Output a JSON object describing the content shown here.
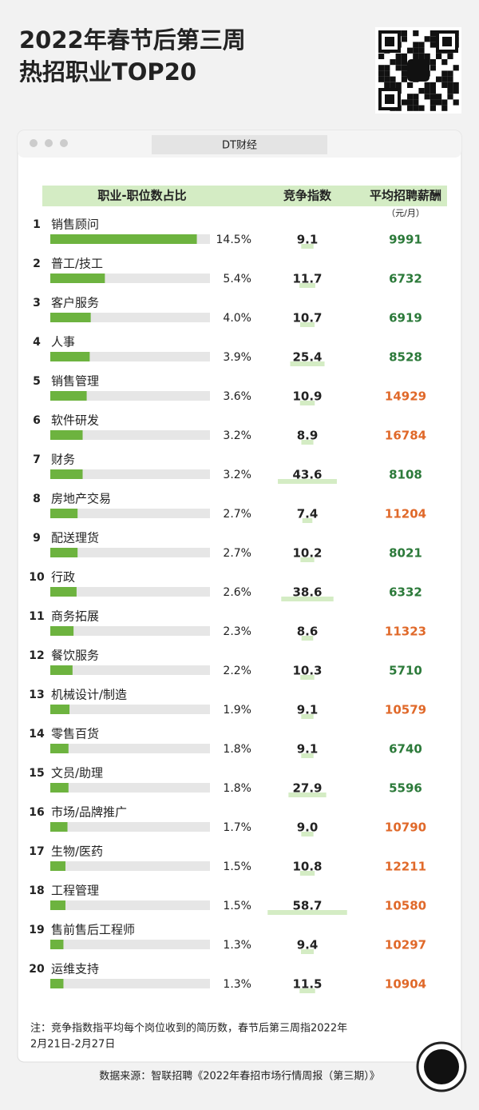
{
  "title_lines": [
    "2022年春节后第三周",
    "热招职业TOP20"
  ],
  "window_title": "DT财经",
  "headers": [
    "职业-职位数占比",
    "竞争指数",
    "平均招聘薪酬"
  ],
  "salary_unit": "（元/月）",
  "chart_data": {
    "type": "bar",
    "ranks": [
      1,
      2,
      3,
      4,
      5,
      6,
      7,
      8,
      9,
      10,
      11,
      12,
      13,
      14,
      15,
      16,
      17,
      18,
      19,
      20
    ],
    "categories": [
      "销售顾问",
      "普工/技工",
      "客户服务",
      "人事",
      "销售管理",
      "软件研发",
      "财务",
      "房地产交易",
      "配送理货",
      "行政",
      "商务拓展",
      "餐饮服务",
      "机械设计/制造",
      "零售百货",
      "文员/助理",
      "市场/品牌推广",
      "生物/医药",
      "工程管理",
      "售前售后工程师",
      "运维支持"
    ],
    "values": [
      14.5,
      5.4,
      4.0,
      3.9,
      3.6,
      3.2,
      3.2,
      2.7,
      2.7,
      2.6,
      2.3,
      2.2,
      1.9,
      1.8,
      1.8,
      1.7,
      1.5,
      1.5,
      1.3,
      1.3
    ],
    "value_labels": [
      "14.5%",
      "5.4%",
      "4.0%",
      "3.9%",
      "3.6%",
      "3.2%",
      "3.2%",
      "2.7%",
      "2.7%",
      "2.6%",
      "2.3%",
      "2.2%",
      "1.9%",
      "1.8%",
      "1.8%",
      "1.7%",
      "1.5%",
      "1.5%",
      "1.3%",
      "1.3%"
    ],
    "color": "#6db33f",
    "track_color": "#e6e6e6",
    "xlim": [
      0,
      15.8
    ],
    "competition_index": [
      9.1,
      11.7,
      10.7,
      25.4,
      10.9,
      8.9,
      43.6,
      7.4,
      10.2,
      38.6,
      8.6,
      10.3,
      9.1,
      9.1,
      27.9,
      9.0,
      10.8,
      58.7,
      9.4,
      11.5
    ],
    "competition_index_labels": [
      "9.1",
      "11.7",
      "10.7",
      "25.4",
      "10.9",
      "8.9",
      "43.6",
      "7.4",
      "10.2",
      "38.6",
      "8.6",
      "10.3",
      "9.1",
      "9.1",
      "27.9",
      "9.0",
      "10.8",
      "58.7",
      "9.4",
      "11.5"
    ],
    "competition_color": "#d4ecc4",
    "competition_xlim": [
      0,
      59
    ],
    "salary": [
      9991,
      6732,
      6919,
      8528,
      14929,
      16784,
      8108,
      11204,
      8021,
      6332,
      11323,
      5710,
      10579,
      6740,
      5596,
      10790,
      12211,
      10580,
      10297,
      10904
    ],
    "salary_colors": [
      "#2c7a3a",
      "#2c7a3a",
      "#2c7a3a",
      "#2c7a3a",
      "#e0692a",
      "#e0692a",
      "#2c7a3a",
      "#e0692a",
      "#2c7a3a",
      "#2c7a3a",
      "#e0692a",
      "#2c7a3a",
      "#e0692a",
      "#2c7a3a",
      "#2c7a3a",
      "#e0692a",
      "#e0692a",
      "#e0692a",
      "#e0692a",
      "#e0692a"
    ]
  },
  "note_lines": [
    "注：竞争指数指平均每个岗位收到的简历数，春节后第三周指2022年",
    "2月21日-2月27日"
  ],
  "source": "数据来源：智联招聘《2022年春招市场行情周报（第三期）》"
}
